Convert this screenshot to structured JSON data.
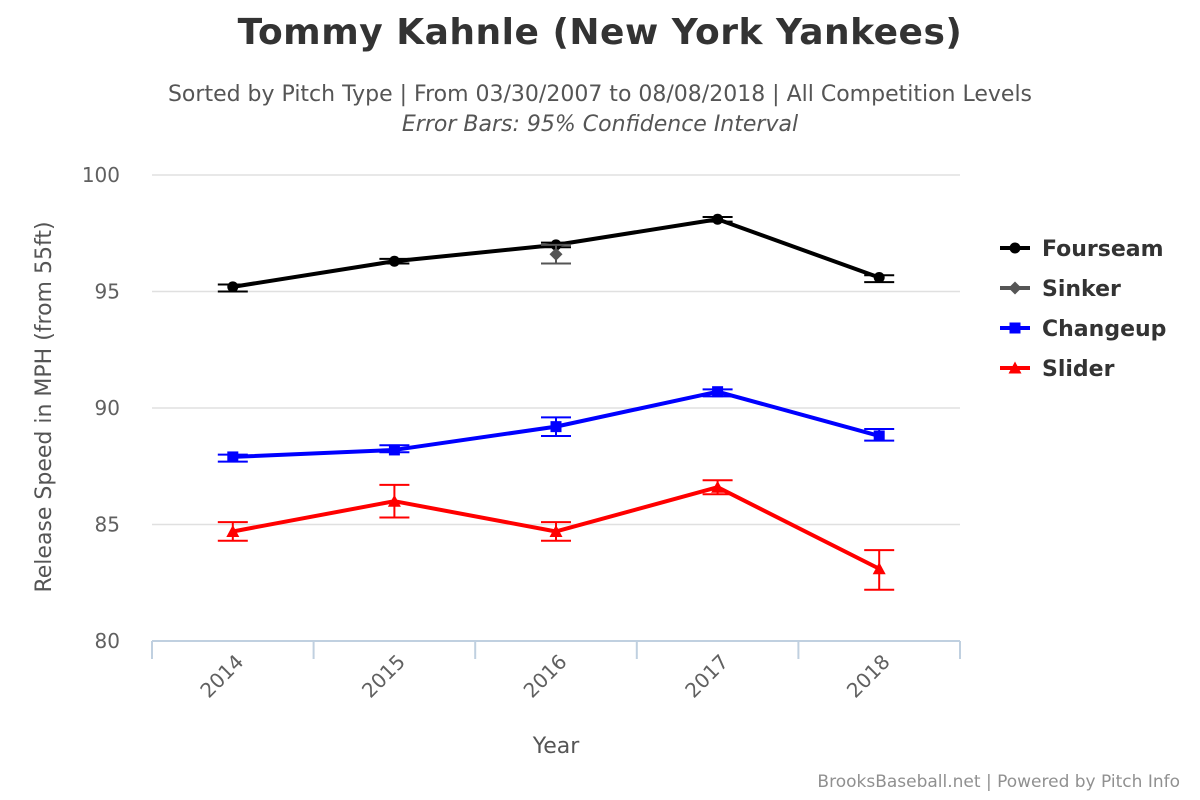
{
  "chart_data": {
    "type": "line",
    "title": "Tommy Kahnle (New York Yankees)",
    "subtitle": "Sorted by Pitch Type | From 03/30/2007 to 08/08/2018 | All Competition Levels",
    "subtitle2": "Error Bars: 95% Confidence Interval",
    "xlabel": "Year",
    "ylabel": "Release Speed in MPH (from 55ft)",
    "categories": [
      "2014",
      "2015",
      "2016",
      "2017",
      "2018"
    ],
    "ylim": [
      80,
      100
    ],
    "yticks": [
      80,
      85,
      90,
      95,
      100
    ],
    "grid": true,
    "legend_position": "right",
    "credits": "BrooksBaseball.net | Powered by Pitch Info",
    "series": [
      {
        "name": "Fourseam",
        "color": "#000000",
        "marker": "circle",
        "values": [
          95.2,
          96.3,
          97.0,
          98.1,
          95.6
        ],
        "error_low": [
          95.0,
          96.2,
          96.9,
          98.0,
          95.4
        ],
        "error_high": [
          95.3,
          96.4,
          97.1,
          98.2,
          95.7
        ]
      },
      {
        "name": "Sinker",
        "color": "#555555",
        "marker": "diamond",
        "values": [
          null,
          null,
          96.6,
          null,
          null
        ],
        "error_low": [
          null,
          null,
          96.2,
          null,
          null
        ],
        "error_high": [
          null,
          null,
          97.0,
          null,
          null
        ]
      },
      {
        "name": "Changeup",
        "color": "#0000ff",
        "marker": "square",
        "values": [
          87.9,
          88.2,
          89.2,
          90.7,
          88.8
        ],
        "error_low": [
          87.7,
          88.1,
          88.8,
          90.5,
          88.6
        ],
        "error_high": [
          88.0,
          88.4,
          89.6,
          90.8,
          89.1
        ]
      },
      {
        "name": "Slider",
        "color": "#ff0000",
        "marker": "triangle",
        "values": [
          84.7,
          86.0,
          84.7,
          86.6,
          83.1
        ],
        "error_low": [
          84.3,
          85.3,
          84.3,
          86.3,
          82.2
        ],
        "error_high": [
          85.1,
          86.7,
          85.1,
          86.9,
          83.9
        ]
      }
    ]
  }
}
